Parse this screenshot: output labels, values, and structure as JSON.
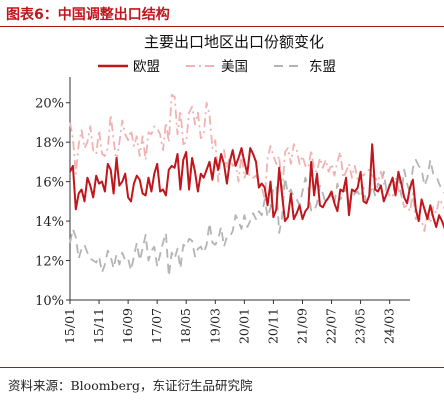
{
  "figure_label": "图表6：中国调整出口结构",
  "source": "资料来源：Bloomberg，东证衍生品研究院",
  "chart_data": {
    "type": "line",
    "title": "主要出口地区出口份额变化",
    "xlabel": "",
    "ylabel": "",
    "ylim": [
      10,
      21
    ],
    "yticks": [
      "10%",
      "12%",
      "14%",
      "16%",
      "18%",
      "20%"
    ],
    "ytick_values": [
      10,
      12,
      14,
      16,
      18,
      20
    ],
    "xlim": [
      2015.0,
      2024.75
    ],
    "xticks": [
      "15/01",
      "15/11",
      "16/09",
      "17/07",
      "18/05",
      "19/03",
      "20/01",
      "20/11",
      "21/09",
      "22/07",
      "23/05",
      "24/03"
    ],
    "xtick_values": [
      2015.0,
      2015.833,
      2016.667,
      2017.5,
      2018.333,
      2019.167,
      2020.0,
      2020.833,
      2021.667,
      2022.5,
      2023.333,
      2024.167
    ],
    "grid": false,
    "legend": "top",
    "x_start": 2015.0,
    "x_step_months": 1,
    "series": [
      {
        "name": "欧盟",
        "color": "#c0161c",
        "style": "solid",
        "values": [
          16.5,
          16.8,
          14.6,
          15.4,
          15.6,
          15.0,
          16.2,
          15.8,
          15.2,
          16.3,
          15.9,
          16.0,
          15.5,
          16.9,
          16.6,
          15.4,
          17.2,
          15.8,
          16.0,
          16.4,
          15.2,
          15.0,
          15.9,
          16.3,
          16.1,
          15.4,
          15.3,
          16.2,
          15.5,
          16.4,
          16.9,
          15.5,
          15.6,
          15.3,
          16.6,
          16.8,
          16.7,
          17.4,
          15.6,
          17.1,
          17.5,
          15.6,
          17.2,
          16.5,
          15.5,
          16.4,
          16.2,
          16.6,
          17.0,
          16.1,
          17.2,
          16.6,
          17.4,
          16.9,
          15.9,
          17.0,
          17.6,
          16.8,
          17.2,
          17.7,
          17.0,
          16.4,
          17.7,
          17.4,
          17.0,
          15.7,
          15.9,
          15.7,
          14.8,
          16.0,
          14.2,
          14.6,
          16.7,
          15.3,
          14.0,
          14.2,
          15.4,
          14.1,
          14.4,
          14.8,
          14.1,
          14.5,
          14.7,
          17.0,
          15.3,
          16.4,
          14.8,
          14.7,
          15.0,
          15.2,
          15.5,
          14.9,
          14.5,
          15.6,
          15.5,
          16.2,
          14.3,
          15.6,
          15.5,
          15.7,
          16.5,
          15.0,
          14.9,
          15.3,
          17.9,
          15.6,
          15.5,
          15.8,
          15.0,
          15.4,
          15.8,
          16.2,
          15.3,
          16.5,
          15.9,
          15.2,
          14.9,
          15.7,
          16.1,
          14.6,
          14.0,
          15.1,
          14.6,
          14.1,
          14.8,
          14.2,
          13.7,
          14.3,
          14.0,
          13.6,
          14.5,
          13.1,
          14.0,
          14.5,
          13.3,
          14.1,
          15.0,
          14.4,
          14.2,
          15.3,
          13.8
        ]
      },
      {
        "name": "美国",
        "color": "#f0b2b2",
        "style": "dashdot",
        "values": [
          19.0,
          18.2,
          16.4,
          17.9,
          18.6,
          17.7,
          18.0,
          18.8,
          17.6,
          17.4,
          18.6,
          17.4,
          17.3,
          17.7,
          19.4,
          18.1,
          17.0,
          18.0,
          19.1,
          18.4,
          18.1,
          18.6,
          17.8,
          18.3,
          17.3,
          18.3,
          17.1,
          18.5,
          18.4,
          18.8,
          18.7,
          18.4,
          17.6,
          19.0,
          18.0,
          20.4,
          20.3,
          18.4,
          19.6,
          17.9,
          18.0,
          19.5,
          19.8,
          18.9,
          19.5,
          18.2,
          18.4,
          20.0,
          19.4,
          17.7,
          18.1,
          16.0,
          17.3,
          17.6,
          16.7,
          17.3,
          16.8,
          16.9,
          16.0,
          17.4,
          16.2,
          16.6,
          16.2,
          16.2,
          16.3,
          16.0,
          15.7,
          15.1,
          17.2,
          17.8,
          17.3,
          16.9,
          17.3,
          15.3,
          17.5,
          17.7,
          16.9,
          17.9,
          17.6,
          16.9,
          17.3,
          16.8,
          16.7,
          17.6,
          16.6,
          16.5,
          17.2,
          16.7,
          17.1,
          16.5,
          16.9,
          16.3,
          17.0,
          17.5,
          16.2,
          16.5,
          16.9,
          16.2,
          16.8,
          16.1,
          16.4,
          16.3,
          16.5,
          16.6,
          16.3,
          16.2,
          16.0,
          16.5,
          15.9,
          15.5,
          15.3,
          15.2,
          16.2,
          15.6,
          15.3,
          14.7,
          14.8,
          14.5,
          15.4,
          14.1,
          14.2,
          14.0,
          13.5,
          14.4,
          13.9,
          14.7,
          14.4,
          15.1,
          14.9,
          14.6,
          14.9,
          14.2,
          14.7,
          15.0,
          13.9,
          14.6,
          15.2,
          14.8,
          15.3,
          15.3,
          14.1
        ]
      },
      {
        "name": "东盟",
        "color": "#b4b4b4",
        "style": "dashed",
        "values": [
          12.9,
          13.6,
          13.2,
          12.1,
          12.6,
          12.8,
          12.4,
          12.1,
          12.0,
          11.9,
          12.2,
          11.4,
          11.8,
          12.5,
          12.2,
          11.6,
          12.3,
          11.8,
          12.4,
          12.0,
          12.1,
          11.5,
          12.2,
          12.9,
          12.0,
          12.6,
          13.3,
          12.0,
          12.5,
          12.7,
          11.7,
          12.3,
          12.9,
          13.4,
          11.2,
          12.4,
          12.1,
          12.6,
          11.6,
          12.8,
          12.7,
          13.1,
          13.0,
          12.2,
          12.6,
          12.7,
          12.4,
          12.8,
          13.9,
          12.9,
          12.8,
          13.1,
          13.7,
          12.7,
          13.2,
          13.2,
          13.5,
          14.3,
          14.0,
          13.6,
          14.3,
          13.7,
          14.0,
          14.4,
          14.1,
          14.5,
          14.3,
          15.1,
          14.2,
          14.7,
          15.7,
          15.8,
          13.4,
          14.2,
          16.2,
          15.4,
          15.6,
          15.2,
          15.1,
          14.8,
          15.5,
          16.2,
          15.7,
          14.5,
          14.5,
          14.9,
          15.8,
          15.4,
          14.9,
          15.2,
          15.3,
          14.9,
          15.9,
          15.1,
          15.3,
          15.7,
          14.9,
          15.2,
          15.4,
          15.5,
          15.2,
          15.7,
          14.9,
          15.3,
          15.8,
          15.3,
          15.9,
          15.8,
          16.5,
          15.4,
          15.9,
          16.1,
          15.8,
          16.3,
          15.3,
          16.6,
          15.9,
          15.4,
          16.7,
          17.1,
          16.8,
          16.6,
          15.8,
          16.2,
          17.1,
          16.4,
          16.3,
          15.9,
          15.6,
          15.4,
          15.8,
          16.2,
          15.7,
          16.1,
          16.8,
          17.6,
          19.0,
          16.1,
          16.0,
          15.8,
          15.5
        ]
      }
    ]
  }
}
